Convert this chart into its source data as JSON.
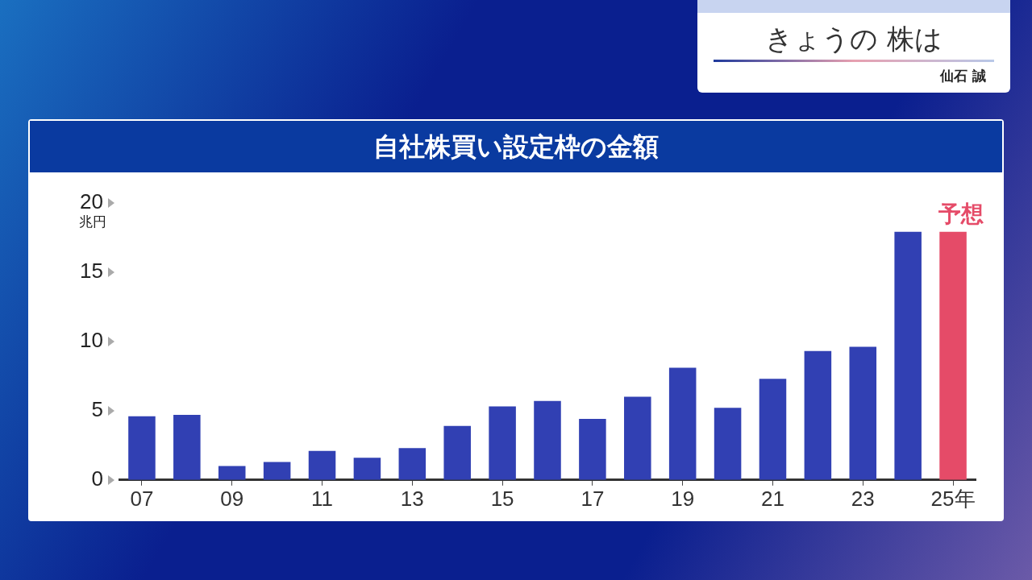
{
  "chart_data": {
    "type": "bar",
    "title": "自社株買い設定枠の金額",
    "ylabel": "兆円",
    "categories": [
      "07",
      null,
      "09",
      null,
      "11",
      null,
      "13",
      null,
      "15",
      null,
      "17",
      null,
      "19",
      null,
      "21",
      null,
      "23",
      null,
      "25年"
    ],
    "values": [
      4.6,
      4.7,
      1.0,
      1.3,
      2.1,
      1.6,
      2.3,
      3.9,
      5.3,
      5.7,
      4.4,
      6.0,
      8.1,
      5.2,
      7.3,
      9.3,
      9.6,
      17.9,
      17.9
    ],
    "colors": [
      "#3140b3",
      "#3140b3",
      "#3140b3",
      "#3140b3",
      "#3140b3",
      "#3140b3",
      "#3140b3",
      "#3140b3",
      "#3140b3",
      "#3140b3",
      "#3140b3",
      "#3140b3",
      "#3140b3",
      "#3140b3",
      "#3140b3",
      "#3140b3",
      "#3140b3",
      "#3140b3",
      "#e54b68"
    ],
    "ylim": [
      0,
      20
    ],
    "yticks": [
      0,
      5,
      10,
      15,
      20
    ],
    "grid": false,
    "legend": false,
    "annotations": [
      "きょうの 株は",
      "仙石 誠",
      {
        "text": "予想",
        "x": "25年",
        "y": 17.9
      }
    ]
  }
}
